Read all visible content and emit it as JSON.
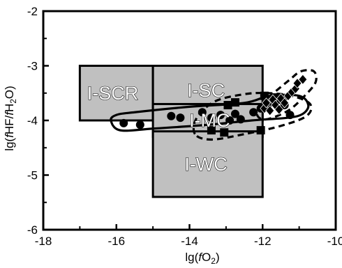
{
  "chart_data": {
    "type": "scatter",
    "title": "",
    "xlabel": "lg(fO2)",
    "ylabel": "lg(fHF/fH2O)",
    "xlabel_parts": {
      "pre": "lg(",
      "f": "f",
      "main": "O",
      "sub": "2",
      "post": ")"
    },
    "ylabel_parts": {
      "pre": "lg(",
      "f1": "f",
      "m1": "HF/",
      "f2": "f",
      "m2": "H",
      "sub": "2",
      "m3": "O)"
    },
    "xlim": [
      -18,
      -10
    ],
    "ylim": [
      -6,
      -2
    ],
    "x_ticks": [
      -18,
      -16,
      -14,
      -12,
      -10
    ],
    "y_ticks": [
      -6,
      -5,
      -4,
      -3,
      -2
    ],
    "x_tick_labels": [
      "-18",
      "-16",
      "-14",
      "-12",
      "-10"
    ],
    "y_tick_labels": [
      "-6",
      "-5",
      "-4",
      "-3",
      "-2"
    ],
    "grid": false,
    "legend": "none",
    "fields": [
      {
        "label": "I-SCR",
        "x": [
          -17,
          -15
        ],
        "y": [
          -4,
          -3
        ],
        "label_at": [
          -16.1,
          -3.5
        ]
      },
      {
        "label": "I-SC",
        "x": [
          -15,
          -12
        ],
        "y": [
          -4,
          -3
        ],
        "label_at": [
          -13.55,
          -3.45
        ]
      },
      {
        "label": "I-MC",
        "x": [
          -15,
          -12
        ],
        "y": [
          -4.3,
          -3.7
        ],
        "label_at": [
          -13.45,
          -4.0
        ]
      },
      {
        "label": "I-WC",
        "x": [
          -15,
          -12
        ],
        "y": [
          -5.4,
          -4.2
        ],
        "label_at": [
          -13.55,
          -4.8
        ]
      }
    ],
    "series": [
      {
        "marker": "circle",
        "points": [
          [
            -15.8,
            -4.05
          ],
          [
            -15.35,
            -4.08
          ],
          [
            -14.5,
            -3.92
          ],
          [
            -14.25,
            -3.95
          ],
          [
            -13.65,
            -3.85
          ],
          [
            -13.4,
            -3.95
          ],
          [
            -13.15,
            -3.9
          ],
          [
            -12.9,
            -4.0
          ],
          [
            -12.75,
            -3.88
          ],
          [
            -12.6,
            -3.98
          ],
          [
            -12.25,
            -3.85
          ],
          [
            -12.05,
            -3.78
          ],
          [
            -11.85,
            -3.7
          ],
          [
            -11.6,
            -3.62
          ],
          [
            -11.4,
            -3.72
          ],
          [
            -11.25,
            -3.9
          ]
        ]
      },
      {
        "marker": "square",
        "points": [
          [
            -13.4,
            -4.18
          ],
          [
            -13.05,
            -4.22
          ],
          [
            -12.95,
            -3.72
          ],
          [
            -12.75,
            -3.67
          ],
          [
            -12.05,
            -4.18
          ],
          [
            -11.95,
            -3.55
          ],
          [
            -11.65,
            -3.58
          ],
          [
            -11.45,
            -3.62
          ]
        ]
      },
      {
        "marker": "diamond",
        "points": [
          [
            -11.95,
            -3.78
          ],
          [
            -11.9,
            -3.68
          ],
          [
            -11.8,
            -3.82
          ],
          [
            -11.72,
            -3.62
          ],
          [
            -11.65,
            -3.72
          ],
          [
            -11.55,
            -3.8
          ],
          [
            -11.5,
            -3.6
          ],
          [
            -11.4,
            -3.68
          ],
          [
            -11.3,
            -3.55
          ],
          [
            -11.2,
            -3.48
          ],
          [
            -11.1,
            -3.42
          ],
          [
            -11.05,
            -3.32
          ],
          [
            -10.9,
            -3.25
          ]
        ]
      }
    ],
    "envelopes": [
      {
        "style": "solid",
        "points": [
          [
            -16.15,
            -4.0
          ],
          [
            -16.0,
            -3.9
          ],
          [
            -15.5,
            -3.85
          ],
          [
            -14.0,
            -3.75
          ],
          [
            -12.5,
            -3.68
          ],
          [
            -11.8,
            -3.55
          ],
          [
            -11.0,
            -3.55
          ],
          [
            -10.75,
            -3.72
          ],
          [
            -10.9,
            -3.88
          ],
          [
            -11.3,
            -3.95
          ],
          [
            -12.3,
            -4.0
          ],
          [
            -13.5,
            -4.08
          ],
          [
            -15.0,
            -4.15
          ],
          [
            -15.9,
            -4.18
          ]
        ]
      },
      {
        "style": "dashed",
        "points": [
          [
            -13.85,
            -4.25
          ],
          [
            -13.8,
            -3.95
          ],
          [
            -13.3,
            -3.65
          ],
          [
            -12.5,
            -3.52
          ],
          [
            -11.9,
            -3.5
          ],
          [
            -11.2,
            -3.55
          ],
          [
            -10.7,
            -3.7
          ],
          [
            -10.8,
            -3.92
          ],
          [
            -11.5,
            -4.1
          ],
          [
            -12.5,
            -4.25
          ],
          [
            -13.4,
            -4.35
          ]
        ]
      },
      {
        "style": "dashed",
        "points": [
          [
            -12.05,
            -3.72
          ],
          [
            -11.7,
            -3.5
          ],
          [
            -11.25,
            -3.25
          ],
          [
            -10.95,
            -3.1
          ],
          [
            -10.6,
            -3.1
          ],
          [
            -10.55,
            -3.3
          ],
          [
            -10.85,
            -3.55
          ],
          [
            -11.3,
            -3.82
          ],
          [
            -11.9,
            -3.98
          ],
          [
            -12.15,
            -3.9
          ]
        ]
      }
    ]
  }
}
